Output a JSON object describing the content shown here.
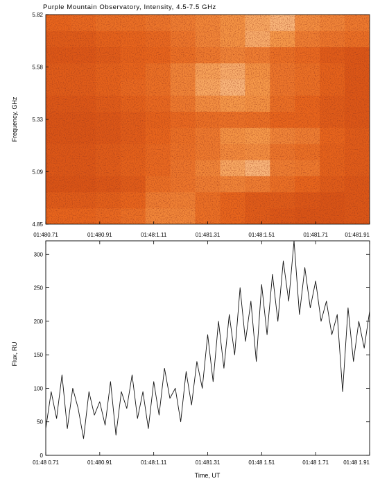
{
  "chart_data": [
    {
      "type": "heatmap",
      "title": "Purple Mountain Observatory, Intensity, 4.5-7.5 GHz",
      "xlabel": "",
      "ylabel": "Frequency, GHz",
      "x_ticks": [
        "01:480.71",
        "01:480.91",
        "01:48:1.11",
        "01:481.31",
        "01:48:1.51",
        "01:481.71",
        "01:481.91"
      ],
      "y_ticks": [
        "4.85",
        "5.09",
        "5.33",
        "5.58",
        "5.82"
      ],
      "ylim": [
        4.85,
        5.82
      ],
      "colormap": [
        "#8a1b06",
        "#c23a0c",
        "#e8651c",
        "#f79a4a",
        "#ffe3c4"
      ],
      "x_centers": [
        0.71,
        0.81,
        0.91,
        1.01,
        1.11,
        1.21,
        1.31,
        1.41,
        1.51,
        1.61,
        1.71,
        1.81,
        1.91
      ],
      "y_centers": [
        4.87,
        4.93,
        5.01,
        5.09,
        5.16,
        5.24,
        5.33,
        5.41,
        5.49,
        5.58,
        5.66,
        5.74,
        5.8
      ],
      "intensity": [
        [
          0.5,
          0.5,
          0.52,
          0.55,
          0.66,
          0.66,
          0.55,
          0.5,
          0.45,
          0.42,
          0.4,
          0.4,
          0.42
        ],
        [
          0.45,
          0.45,
          0.47,
          0.5,
          0.62,
          0.63,
          0.55,
          0.5,
          0.45,
          0.45,
          0.42,
          0.4,
          0.42
        ],
        [
          0.4,
          0.4,
          0.42,
          0.45,
          0.55,
          0.58,
          0.62,
          0.65,
          0.62,
          0.55,
          0.5,
          0.45,
          0.42
        ],
        [
          0.42,
          0.42,
          0.45,
          0.48,
          0.52,
          0.58,
          0.66,
          0.8,
          0.85,
          0.62,
          0.6,
          0.48,
          0.45
        ],
        [
          0.42,
          0.42,
          0.45,
          0.47,
          0.52,
          0.56,
          0.6,
          0.68,
          0.7,
          0.58,
          0.55,
          0.48,
          0.45
        ],
        [
          0.4,
          0.4,
          0.42,
          0.45,
          0.5,
          0.55,
          0.6,
          0.72,
          0.75,
          0.65,
          0.62,
          0.5,
          0.45
        ],
        [
          0.4,
          0.4,
          0.42,
          0.45,
          0.48,
          0.52,
          0.55,
          0.56,
          0.55,
          0.5,
          0.5,
          0.45,
          0.42
        ],
        [
          0.42,
          0.42,
          0.45,
          0.48,
          0.52,
          0.6,
          0.7,
          0.75,
          0.72,
          0.55,
          0.5,
          0.45,
          0.42
        ],
        [
          0.45,
          0.45,
          0.48,
          0.52,
          0.55,
          0.65,
          0.8,
          0.85,
          0.75,
          0.58,
          0.55,
          0.48,
          0.42
        ],
        [
          0.45,
          0.45,
          0.48,
          0.5,
          0.55,
          0.65,
          0.78,
          0.82,
          0.72,
          0.58,
          0.55,
          0.48,
          0.42
        ],
        [
          0.42,
          0.42,
          0.45,
          0.48,
          0.5,
          0.55,
          0.6,
          0.65,
          0.62,
          0.55,
          0.52,
          0.45,
          0.42
        ],
        [
          0.45,
          0.45,
          0.48,
          0.5,
          0.52,
          0.58,
          0.65,
          0.72,
          0.82,
          0.75,
          0.62,
          0.58,
          0.55
        ],
        [
          0.5,
          0.52,
          0.55,
          0.55,
          0.58,
          0.62,
          0.66,
          0.72,
          0.8,
          0.85,
          0.7,
          0.65,
          0.6
        ]
      ]
    },
    {
      "type": "line",
      "title": "",
      "xlabel": "Time, UT",
      "ylabel": "Flux, RU",
      "x_ticks": [
        "01:48 0.71",
        "01:480.91",
        "01:48:1.11",
        "01:481.31",
        "01:48 1.51",
        "01:48 1.71",
        "01:48 1.91"
      ],
      "y_ticks": [
        "0",
        "50",
        "100",
        "150",
        "200",
        "250",
        "300"
      ],
      "xlim": [
        0.71,
        1.91
      ],
      "ylim": [
        0,
        320
      ],
      "series": [
        {
          "x": [
            0.71,
            0.73,
            0.75,
            0.77,
            0.79,
            0.81,
            0.83,
            0.85,
            0.87,
            0.89,
            0.91,
            0.93,
            0.95,
            0.97,
            0.99,
            1.01,
            1.03,
            1.05,
            1.07,
            1.09,
            1.11,
            1.13,
            1.15,
            1.17,
            1.19,
            1.21,
            1.23,
            1.25,
            1.27,
            1.29,
            1.31,
            1.33,
            1.35,
            1.37,
            1.39,
            1.41,
            1.43,
            1.45,
            1.47,
            1.49,
            1.51,
            1.53,
            1.55,
            1.57,
            1.59,
            1.61,
            1.63,
            1.65,
            1.67,
            1.69,
            1.71,
            1.73,
            1.75,
            1.77,
            1.79,
            1.81,
            1.83,
            1.85,
            1.87,
            1.89,
            1.91
          ],
          "y": [
            40,
            95,
            55,
            120,
            40,
            100,
            70,
            25,
            95,
            60,
            80,
            45,
            110,
            30,
            95,
            70,
            120,
            55,
            95,
            40,
            110,
            60,
            130,
            85,
            100,
            50,
            125,
            75,
            140,
            100,
            180,
            110,
            200,
            130,
            210,
            150,
            250,
            170,
            230,
            140,
            255,
            180,
            270,
            200,
            290,
            230,
            320,
            210,
            280,
            220,
            260,
            200,
            230,
            180,
            210,
            95,
            220,
            140,
            200,
            160,
            215
          ]
        }
      ]
    }
  ]
}
